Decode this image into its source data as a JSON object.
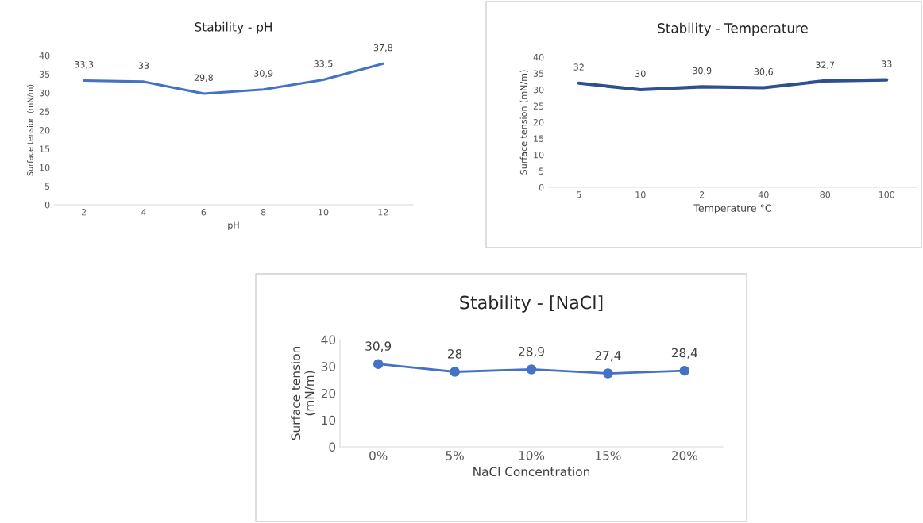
{
  "chart_data": [
    {
      "type": "line",
      "title": "Stability - pH",
      "xlabel": "pH",
      "ylabel": "Surface tension (mN/m)",
      "categories": [
        "2",
        "4",
        "6",
        "8",
        "10",
        "12"
      ],
      "series": [
        {
          "color": "#4472c4",
          "values": [
            33.3,
            33,
            29.8,
            30.9,
            33.5,
            37.8
          ],
          "value_labels": [
            "33,3",
            "33",
            "29,8",
            "30,9",
            "33,5",
            "37,8"
          ]
        }
      ],
      "ylim": [
        0,
        40
      ],
      "yticks": [
        0,
        5,
        10,
        15,
        20,
        25,
        30,
        35,
        40
      ],
      "marker": "none"
    },
    {
      "type": "line",
      "title": "Stability - Temperature",
      "xlabel": "Temperature °C",
      "ylabel": "Surface tension (mN/m)",
      "categories": [
        "5",
        "10",
        "2",
        "40",
        "80",
        "100"
      ],
      "series": [
        {
          "color": "#2f4f8f",
          "values": [
            32,
            30,
            30.9,
            30.6,
            32.7,
            33
          ],
          "value_labels": [
            "32",
            "30",
            "30,9",
            "30,6",
            "32,7",
            "33"
          ]
        }
      ],
      "ylim": [
        0,
        40
      ],
      "yticks": [
        0,
        5,
        10,
        15,
        20,
        25,
        30,
        35,
        40
      ],
      "marker": "none"
    },
    {
      "type": "line",
      "title": "Stability - [NaCl]",
      "xlabel": "NaCl Concentration",
      "ylabel": "Surface tension\n(mN/m)",
      "categories": [
        "0%",
        "5%",
        "10%",
        "15%",
        "20%"
      ],
      "series": [
        {
          "color": "#4472c4",
          "values": [
            30.9,
            28,
            28.9,
            27.4,
            28.4
          ],
          "value_labels": [
            "30,9",
            "28",
            "28,9",
            "27,4",
            "28,4"
          ]
        }
      ],
      "ylim": [
        0,
        40
      ],
      "yticks": [
        0,
        10,
        20,
        30,
        40
      ],
      "marker": "circle"
    }
  ]
}
